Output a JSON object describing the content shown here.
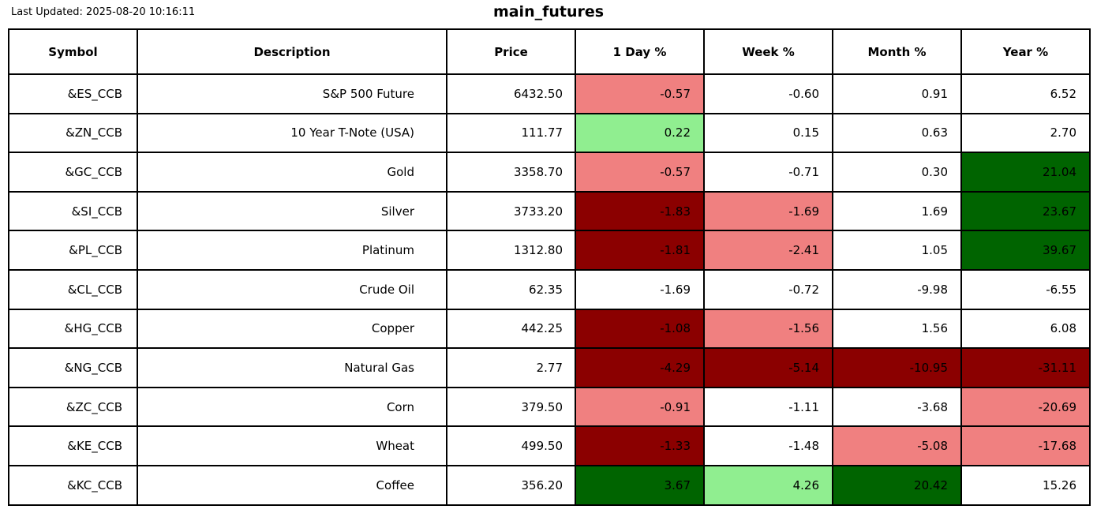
{
  "header": {
    "last_updated": "Last Updated: 2025-08-20 10:16:11",
    "title": "main_futures"
  },
  "colors": {
    "positive_strong": "#006400",
    "positive_mild": "#90EE90",
    "negative_strong": "#8B0000",
    "negative_mild": "#F08080",
    "neutral": "#FFFFFF",
    "border": "#000000",
    "text": "#000000"
  },
  "table": {
    "columns": [
      "Symbol",
      "Description",
      "Price",
      "1 Day %",
      "Week %",
      "Month %",
      "Year %"
    ],
    "rows": [
      {
        "symbol": "&ES_CCB",
        "description": "S&P 500 Future",
        "price": "6432.50",
        "pct": [
          {
            "value": "-0.57",
            "bg": "negative_mild"
          },
          {
            "value": "-0.60",
            "bg": "neutral"
          },
          {
            "value": "0.91",
            "bg": "neutral"
          },
          {
            "value": "6.52",
            "bg": "neutral"
          }
        ]
      },
      {
        "symbol": "&ZN_CCB",
        "description": "10 Year T-Note (USA)",
        "price": "111.77",
        "pct": [
          {
            "value": "0.22",
            "bg": "positive_mild"
          },
          {
            "value": "0.15",
            "bg": "neutral"
          },
          {
            "value": "0.63",
            "bg": "neutral"
          },
          {
            "value": "2.70",
            "bg": "neutral"
          }
        ]
      },
      {
        "symbol": "&GC_CCB",
        "description": "Gold",
        "price": "3358.70",
        "pct": [
          {
            "value": "-0.57",
            "bg": "negative_mild"
          },
          {
            "value": "-0.71",
            "bg": "neutral"
          },
          {
            "value": "0.30",
            "bg": "neutral"
          },
          {
            "value": "21.04",
            "bg": "positive_strong"
          }
        ]
      },
      {
        "symbol": "&SI_CCB",
        "description": "Silver",
        "price": "3733.20",
        "pct": [
          {
            "value": "-1.83",
            "bg": "negative_strong"
          },
          {
            "value": "-1.69",
            "bg": "negative_mild"
          },
          {
            "value": "1.69",
            "bg": "neutral"
          },
          {
            "value": "23.67",
            "bg": "positive_strong"
          }
        ]
      },
      {
        "symbol": "&PL_CCB",
        "description": "Platinum",
        "price": "1312.80",
        "pct": [
          {
            "value": "-1.81",
            "bg": "negative_strong"
          },
          {
            "value": "-2.41",
            "bg": "negative_mild"
          },
          {
            "value": "1.05",
            "bg": "neutral"
          },
          {
            "value": "39.67",
            "bg": "positive_strong"
          }
        ]
      },
      {
        "symbol": "&CL_CCB",
        "description": "Crude Oil",
        "price": "62.35",
        "pct": [
          {
            "value": "-1.69",
            "bg": "neutral"
          },
          {
            "value": "-0.72",
            "bg": "neutral"
          },
          {
            "value": "-9.98",
            "bg": "neutral"
          },
          {
            "value": "-6.55",
            "bg": "neutral"
          }
        ]
      },
      {
        "symbol": "&HG_CCB",
        "description": "Copper",
        "price": "442.25",
        "pct": [
          {
            "value": "-1.08",
            "bg": "negative_strong"
          },
          {
            "value": "-1.56",
            "bg": "negative_mild"
          },
          {
            "value": "1.56",
            "bg": "neutral"
          },
          {
            "value": "6.08",
            "bg": "neutral"
          }
        ]
      },
      {
        "symbol": "&NG_CCB",
        "description": "Natural Gas",
        "price": "2.77",
        "pct": [
          {
            "value": "-4.29",
            "bg": "negative_strong"
          },
          {
            "value": "-5.14",
            "bg": "negative_strong"
          },
          {
            "value": "-10.95",
            "bg": "negative_strong"
          },
          {
            "value": "-31.11",
            "bg": "negative_strong"
          }
        ]
      },
      {
        "symbol": "&ZC_CCB",
        "description": "Corn",
        "price": "379.50",
        "pct": [
          {
            "value": "-0.91",
            "bg": "negative_mild"
          },
          {
            "value": "-1.11",
            "bg": "neutral"
          },
          {
            "value": "-3.68",
            "bg": "neutral"
          },
          {
            "value": "-20.69",
            "bg": "negative_mild"
          }
        ]
      },
      {
        "symbol": "&KE_CCB",
        "description": "Wheat",
        "price": "499.50",
        "pct": [
          {
            "value": "-1.33",
            "bg": "negative_strong"
          },
          {
            "value": "-1.48",
            "bg": "neutral"
          },
          {
            "value": "-5.08",
            "bg": "negative_mild"
          },
          {
            "value": "-17.68",
            "bg": "negative_mild"
          }
        ]
      },
      {
        "symbol": "&KC_CCB",
        "description": "Coffee",
        "price": "356.20",
        "pct": [
          {
            "value": "3.67",
            "bg": "positive_strong"
          },
          {
            "value": "4.26",
            "bg": "positive_mild"
          },
          {
            "value": "20.42",
            "bg": "positive_strong"
          },
          {
            "value": "15.26",
            "bg": "neutral"
          }
        ]
      }
    ]
  },
  "chart_data": {
    "type": "table",
    "title": "main_futures",
    "last_updated_text": "Last Updated: 2025-08-20 10:16:11",
    "columns": [
      "Symbol",
      "Description",
      "Price",
      "1 Day %",
      "Week %",
      "Month %",
      "Year %"
    ],
    "rows": [
      [
        "&ES_CCB",
        "S&P 500 Future",
        6432.5,
        -0.57,
        -0.6,
        0.91,
        6.52
      ],
      [
        "&ZN_CCB",
        "10 Year T-Note (USA)",
        111.77,
        0.22,
        0.15,
        0.63,
        2.7
      ],
      [
        "&GC_CCB",
        "Gold",
        3358.7,
        -0.57,
        -0.71,
        0.3,
        21.04
      ],
      [
        "&SI_CCB",
        "Silver",
        3733.2,
        -1.83,
        -1.69,
        1.69,
        23.67
      ],
      [
        "&PL_CCB",
        "Platinum",
        1312.8,
        -1.81,
        -2.41,
        1.05,
        39.67
      ],
      [
        "&CL_CCB",
        "Crude Oil",
        62.35,
        -1.69,
        -0.72,
        -9.98,
        -6.55
      ],
      [
        "&HG_CCB",
        "Copper",
        442.25,
        -1.08,
        -1.56,
        1.56,
        6.08
      ],
      [
        "&NG_CCB",
        "Natural Gas",
        2.77,
        -4.29,
        -5.14,
        -10.95,
        -31.11
      ],
      [
        "&ZC_CCB",
        "Corn",
        379.5,
        -0.91,
        -1.11,
        -3.68,
        -20.69
      ],
      [
        "&KE_CCB",
        "Wheat",
        499.5,
        -1.33,
        -1.48,
        -5.08,
        -17.68
      ],
      [
        "&KC_CCB",
        "Coffee",
        356.2,
        3.67,
        4.26,
        20.42,
        15.26
      ]
    ],
    "cell_color_legend": {
      "dark_green": "strong gain",
      "light_green": "mild gain",
      "dark_red": "strong loss",
      "light_red": "mild loss",
      "white": "neutral"
    }
  }
}
